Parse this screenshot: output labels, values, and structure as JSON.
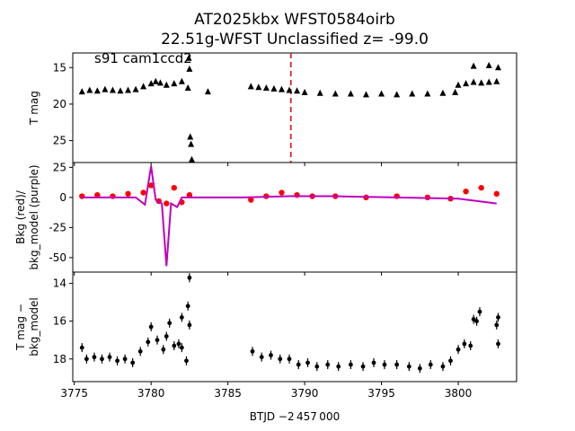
{
  "title_line1": "AT2025kbx  WFST0584oirb",
  "title_line2": "22.51g-WFST Unclassified z= -99.0",
  "xlabel": "BTJD −2 457 000",
  "colors": {
    "points": "#000000",
    "bkg": "#ff0000",
    "model": "#bf00bf",
    "marker_line": "#d62728"
  },
  "chart_data": [
    {
      "type": "scatter",
      "panel": "top",
      "ylabel": "T mag",
      "annotation": "s91 cam1ccd2",
      "xlim": [
        3774.9,
        3803.8
      ],
      "ylim": [
        28.0,
        13.0
      ],
      "yticks": [
        15,
        20,
        25
      ],
      "vline_x": 3789.1,
      "series": [
        {
          "values": [
            [
              3775.5,
              18.3
            ],
            [
              3776.0,
              18.1
            ],
            [
              3776.5,
              18.2
            ],
            [
              3777.0,
              18.0
            ],
            [
              3777.5,
              18.1
            ],
            [
              3778.0,
              18.2
            ],
            [
              3778.5,
              18.1
            ],
            [
              3779.0,
              18.0
            ],
            [
              3779.5,
              17.6
            ],
            [
              3780.0,
              17.2
            ],
            [
              3780.3,
              16.9
            ],
            [
              3780.6,
              17.1
            ],
            [
              3781.0,
              17.4
            ],
            [
              3781.5,
              17.2
            ],
            [
              3782.0,
              16.9
            ],
            [
              3782.4,
              17.8
            ],
            [
              3782.45,
              13.7
            ],
            [
              3782.5,
              15.2
            ],
            [
              3782.55,
              24.5
            ],
            [
              3782.6,
              25.5
            ],
            [
              3782.65,
              27.6
            ],
            [
              3783.7,
              18.3
            ],
            [
              3786.5,
              17.6
            ],
            [
              3787.0,
              17.7
            ],
            [
              3787.5,
              17.8
            ],
            [
              3788.0,
              17.9
            ],
            [
              3788.5,
              18.0
            ],
            [
              3789.0,
              18.1
            ],
            [
              3789.5,
              18.2
            ],
            [
              3790.0,
              18.4
            ],
            [
              3791.0,
              18.5
            ],
            [
              3792.0,
              18.6
            ],
            [
              3793.0,
              18.6
            ],
            [
              3794.0,
              18.7
            ],
            [
              3795.0,
              18.6
            ],
            [
              3796.0,
              18.7
            ],
            [
              3797.0,
              18.6
            ],
            [
              3798.0,
              18.6
            ],
            [
              3799.0,
              18.5
            ],
            [
              3799.8,
              18.4
            ],
            [
              3800.0,
              17.4
            ],
            [
              3800.5,
              17.2
            ],
            [
              3801.0,
              17.0
            ],
            [
              3801.5,
              17.1
            ],
            [
              3802.0,
              17.0
            ],
            [
              3802.5,
              16.9
            ],
            [
              3801.0,
              14.8
            ],
            [
              3802.0,
              14.7
            ],
            [
              3802.6,
              15.0
            ]
          ]
        }
      ]
    },
    {
      "type": "scatter",
      "panel": "middle",
      "ylabel": "Bkg (red)/\nbkg_model (purple)",
      "xlim": [
        3774.9,
        3803.8
      ],
      "ylim": [
        -62,
        29
      ],
      "yticks": [
        25,
        0,
        -25,
        -50
      ],
      "series": [
        {
          "values": [
            [
              3775.5,
              1
            ],
            [
              3776.5,
              2
            ],
            [
              3777.5,
              1
            ],
            [
              3778.5,
              3
            ],
            [
              3779.5,
              4
            ],
            [
              3780.0,
              10
            ],
            [
              3780.5,
              -3
            ],
            [
              3781.0,
              -5
            ],
            [
              3781.5,
              8
            ],
            [
              3782.0,
              -4
            ],
            [
              3782.5,
              2
            ],
            [
              3786.5,
              -2
            ],
            [
              3787.5,
              1
            ],
            [
              3788.5,
              4
            ],
            [
              3789.5,
              2
            ],
            [
              3790.5,
              1
            ],
            [
              3792.0,
              1
            ],
            [
              3794.0,
              0
            ],
            [
              3796.0,
              1
            ],
            [
              3798.0,
              0
            ],
            [
              3799.5,
              -1
            ],
            [
              3800.5,
              5
            ],
            [
              3801.5,
              8
            ],
            [
              3802.5,
              3
            ]
          ]
        },
        {
          "values": [
            [
              3775.5,
              0
            ],
            [
              3779.0,
              0
            ],
            [
              3779.6,
              -6
            ],
            [
              3780.0,
              26
            ],
            [
              3780.3,
              -2
            ],
            [
              3780.7,
              -5
            ],
            [
              3781.0,
              -57
            ],
            [
              3781.3,
              -5
            ],
            [
              3781.7,
              -8
            ],
            [
              3782.0,
              0
            ],
            [
              3786.0,
              0
            ],
            [
              3789.0,
              1
            ],
            [
              3792.0,
              1
            ],
            [
              3796.0,
              0
            ],
            [
              3800.0,
              -1
            ],
            [
              3802.5,
              -5
            ]
          ]
        }
      ]
    },
    {
      "type": "scatter",
      "panel": "bottom",
      "ylabel": "T mag −\nbkg_model",
      "xlim": [
        3774.9,
        3803.8
      ],
      "ylim": [
        19.2,
        13.4
      ],
      "yticks": [
        14,
        16,
        18
      ],
      "xticks": [
        3775,
        3780,
        3785,
        3790,
        3795,
        3800
      ],
      "series": [
        {
          "values": [
            [
              3775.5,
              17.4
            ],
            [
              3775.8,
              18.0
            ],
            [
              3776.3,
              17.9
            ],
            [
              3776.8,
              18.0
            ],
            [
              3777.3,
              17.9
            ],
            [
              3777.8,
              18.1
            ],
            [
              3778.3,
              18.0
            ],
            [
              3778.8,
              18.2
            ],
            [
              3779.3,
              17.6
            ],
            [
              3779.8,
              17.1
            ],
            [
              3780.0,
              16.3
            ],
            [
              3780.4,
              17.0
            ],
            [
              3780.8,
              17.5
            ],
            [
              3781.0,
              16.8
            ],
            [
              3781.2,
              16.1
            ],
            [
              3781.5,
              17.3
            ],
            [
              3781.8,
              17.2
            ],
            [
              3782.0,
              17.4
            ],
            [
              3782.3,
              18.1
            ],
            [
              3782.0,
              15.8
            ],
            [
              3782.4,
              15.2
            ],
            [
              3782.5,
              16.2
            ],
            [
              3782.5,
              13.7
            ],
            [
              3786.6,
              17.6
            ],
            [
              3787.2,
              17.9
            ],
            [
              3787.8,
              17.8
            ],
            [
              3788.4,
              18.0
            ],
            [
              3789.0,
              18.0
            ],
            [
              3789.6,
              18.3
            ],
            [
              3790.2,
              18.2
            ],
            [
              3790.8,
              18.4
            ],
            [
              3791.5,
              18.3
            ],
            [
              3792.2,
              18.4
            ],
            [
              3793.0,
              18.3
            ],
            [
              3793.8,
              18.4
            ],
            [
              3794.5,
              18.2
            ],
            [
              3795.2,
              18.3
            ],
            [
              3796.0,
              18.3
            ],
            [
              3796.8,
              18.4
            ],
            [
              3797.5,
              18.5
            ],
            [
              3798.2,
              18.3
            ],
            [
              3799.0,
              18.4
            ],
            [
              3799.5,
              18.1
            ],
            [
              3800.0,
              17.5
            ],
            [
              3800.4,
              17.2
            ],
            [
              3800.8,
              17.3
            ],
            [
              3801.0,
              15.9
            ],
            [
              3801.2,
              16.0
            ],
            [
              3801.4,
              15.5
            ],
            [
              3802.5,
              16.2
            ],
            [
              3802.6,
              15.8
            ],
            [
              3802.6,
              17.2
            ]
          ]
        }
      ]
    }
  ]
}
